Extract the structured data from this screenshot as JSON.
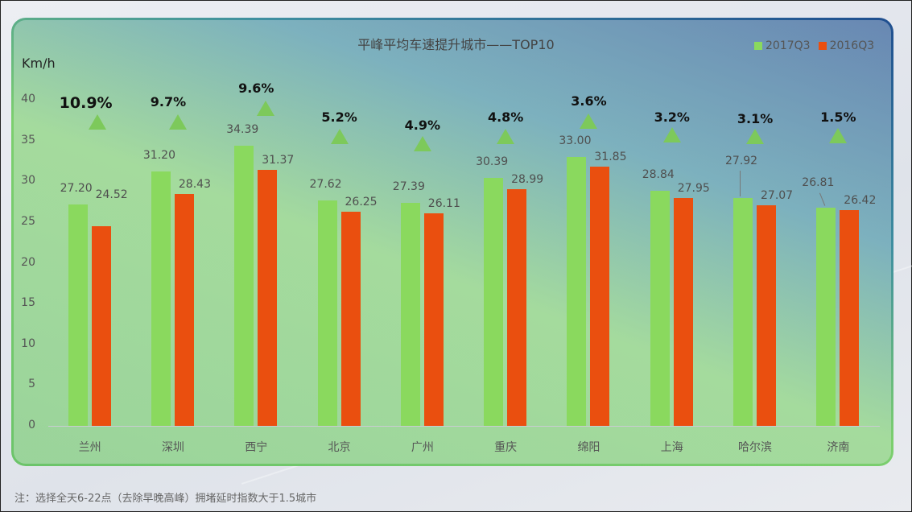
{
  "chart_data": {
    "type": "bar",
    "title": "平峰平均车速提升城市——TOP10",
    "xlabel": "",
    "ylabel": "Km/h",
    "ylim": [
      0,
      40
    ],
    "yticks": [
      0,
      5,
      10,
      15,
      20,
      25,
      30,
      35,
      40
    ],
    "grid": false,
    "legend_position": "top-right",
    "categories": [
      "兰州",
      "深圳",
      "西宁",
      "北京",
      "广州",
      "重庆",
      "绵阳",
      "上海",
      "哈尔滨",
      "济南"
    ],
    "series": [
      {
        "name": "2017Q3",
        "color": "#8ad95e",
        "values": [
          27.2,
          31.2,
          34.39,
          27.62,
          27.39,
          30.39,
          33.0,
          28.84,
          27.92,
          26.81
        ]
      },
      {
        "name": "2016Q3",
        "color": "#ea4f0f",
        "values": [
          24.52,
          28.43,
          31.37,
          26.25,
          26.11,
          28.99,
          31.85,
          27.95,
          27.07,
          26.42
        ]
      }
    ],
    "annotations": {
      "growth_pct": [
        "10.9%",
        "9.7%",
        "9.6%",
        "5.2%",
        "4.9%",
        "4.8%",
        "3.6%",
        "3.2%",
        "3.1%",
        "1.5%"
      ],
      "marker": "green-up-triangle"
    }
  },
  "page": {
    "title": "平峰平均车速提升城市——TOP10",
    "unit": "Km/h",
    "legend": [
      {
        "label": "2017Q3",
        "color": "#8ad95e"
      },
      {
        "label": "2016Q3",
        "color": "#ea4f0f"
      }
    ],
    "y_ticks": [
      "40",
      "35",
      "30",
      "25",
      "20",
      "15",
      "10",
      "5",
      "0"
    ],
    "footnote": "注：选择全天6-22点（去除早晚高峰）拥堵延时指数大于1.5城市"
  }
}
